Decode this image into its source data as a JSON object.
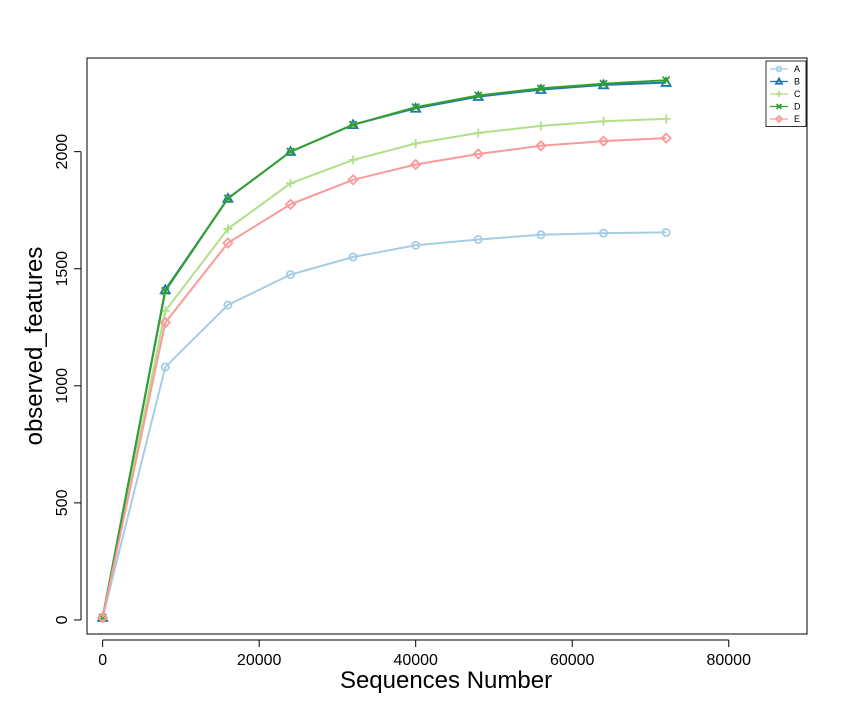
{
  "chart_data": {
    "type": "line",
    "title": "",
    "xlabel": "Sequences Number",
    "ylabel": "observed_features",
    "xlim": [
      -2000,
      90000
    ],
    "ylim": [
      -60,
      2400
    ],
    "xticks": [
      0,
      20000,
      40000,
      60000,
      80000
    ],
    "yticks": [
      0,
      500,
      1000,
      1500,
      2000
    ],
    "grid": false,
    "legend_position": "top-right",
    "x": [
      0,
      8000,
      16000,
      24000,
      32000,
      40000,
      48000,
      56000,
      64000,
      72000
    ],
    "series": [
      {
        "name": "A",
        "color": "#a6cee3",
        "marker": "circle",
        "values": [
          10,
          1080,
          1345,
          1475,
          1550,
          1600,
          1625,
          1645,
          1652,
          1655
        ]
      },
      {
        "name": "B",
        "color": "#1f78b4",
        "marker": "triangle",
        "values": [
          10,
          1410,
          1800,
          2000,
          2115,
          2185,
          2235,
          2265,
          2285,
          2295
        ]
      },
      {
        "name": "C",
        "color": "#b2df8a",
        "marker": "plus",
        "values": [
          10,
          1320,
          1670,
          1865,
          1965,
          2035,
          2080,
          2110,
          2130,
          2140
        ]
      },
      {
        "name": "D",
        "color": "#33a02c",
        "marker": "cross",
        "values": [
          10,
          1405,
          1800,
          2000,
          2115,
          2190,
          2240,
          2270,
          2290,
          2305
        ]
      },
      {
        "name": "E",
        "color": "#fb9a99",
        "marker": "diamond",
        "values": [
          10,
          1270,
          1610,
          1775,
          1880,
          1945,
          1990,
          2025,
          2045,
          2058
        ]
      }
    ]
  }
}
